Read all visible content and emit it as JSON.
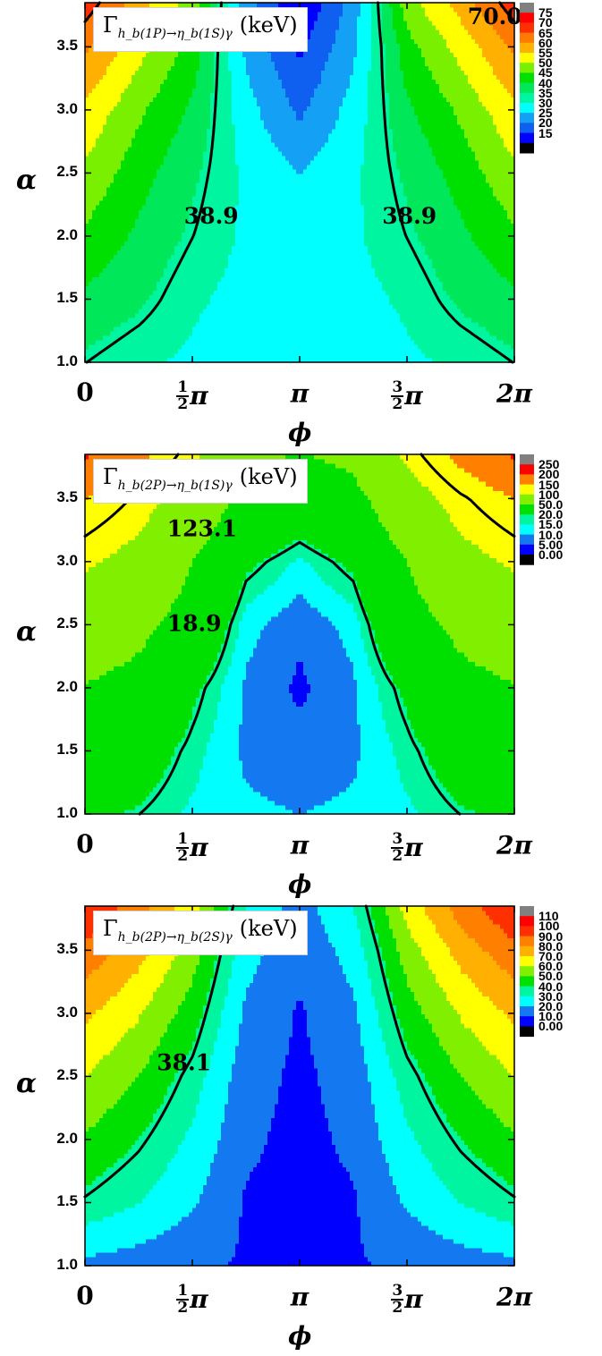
{
  "chart_data": [
    {
      "type": "heatmap",
      "title_symbol": "Γ",
      "title_subscript": "h_b(1P)→η_b(1S)γ",
      "title_unit": "(keV)",
      "xlabel": "ϕ",
      "ylabel": "α",
      "xticks": [
        {
          "value": 0,
          "num": "",
          "label": "0"
        },
        {
          "value": 1.5708,
          "num": "1",
          "label": "π"
        },
        {
          "value": 3.1416,
          "num": "",
          "label": "π"
        },
        {
          "value": 4.7124,
          "num": "3",
          "label": "π"
        },
        {
          "value": 6.2832,
          "num": "",
          "label": "2π"
        }
      ],
      "frac_den": "2",
      "yticks": [
        "1.0",
        "1.5",
        "2.0",
        "2.5",
        "3.0",
        "3.5"
      ],
      "xlim": [
        0,
        6.2832
      ],
      "ylim": [
        1.0,
        3.85
      ],
      "levels": [
        15,
        20,
        25,
        30,
        35,
        40,
        45,
        50,
        55,
        60,
        65,
        70,
        75
      ],
      "colorbar_labels": [
        "75",
        "70",
        "65",
        "60",
        "55",
        "50",
        "45",
        "40",
        "35",
        "30",
        "25",
        "20",
        "15"
      ],
      "colors": [
        "#000000",
        "#0000ff",
        "#0f5ff0",
        "#14a0f5",
        "#00ffff",
        "#00f5a0",
        "#00e85a",
        "#00e000",
        "#78f000",
        "#ffff00",
        "#ffb000",
        "#ff7a00",
        "#ff3000",
        "#ff0000",
        "#808080"
      ],
      "grid": {
        "x": [
          0,
          0.7854,
          1.5708,
          2.3562,
          3.1416,
          3.927,
          4.7124,
          5.4978,
          6.2832
        ],
        "y": [
          1.0,
          1.5,
          2.0,
          2.5,
          3.0,
          3.5,
          3.85
        ],
        "z": [
          [
            39,
            36,
            34,
            31,
            30,
            31,
            34,
            36,
            39
          ],
          [
            44,
            41,
            36,
            33,
            32,
            33,
            36,
            41,
            44
          ],
          [
            49,
            44,
            39,
            34,
            33,
            34,
            39,
            44,
            49
          ],
          [
            54,
            47,
            41,
            34,
            30,
            34,
            41,
            47,
            54
          ],
          [
            59,
            51,
            44,
            32,
            24,
            32,
            44,
            51,
            59
          ],
          [
            66,
            57,
            48,
            29,
            19,
            29,
            48,
            57,
            66
          ],
          [
            73,
            62,
            53,
            27,
            15,
            27,
            53,
            62,
            73
          ]
        ]
      },
      "contour_lines": [
        {
          "level": 38.9,
          "label": "38.9"
        },
        {
          "level": 70.0,
          "label": "70.0"
        }
      ],
      "contour_label_positions": [
        [
          1.45,
          2.1
        ],
        [
          4.35,
          2.1
        ],
        [
          5.6,
          3.68
        ]
      ]
    },
    {
      "type": "heatmap",
      "title_symbol": "Γ",
      "title_subscript": "h_b(2P)→η_b(1S)γ",
      "title_unit": "(keV)",
      "xlabel": "ϕ",
      "ylabel": "α",
      "xticks": [
        {
          "value": 0,
          "num": "",
          "label": "0"
        },
        {
          "value": 1.5708,
          "num": "1",
          "label": "π"
        },
        {
          "value": 3.1416,
          "num": "",
          "label": "π"
        },
        {
          "value": 4.7124,
          "num": "3",
          "label": "π"
        },
        {
          "value": 6.2832,
          "num": "",
          "label": "2π"
        }
      ],
      "frac_den": "2",
      "yticks": [
        "1.0",
        "1.5",
        "2.0",
        "2.5",
        "3.0",
        "3.5"
      ],
      "xlim": [
        0,
        6.2832
      ],
      "ylim": [
        1.0,
        3.85
      ],
      "levels": [
        0,
        5,
        10,
        15,
        20,
        50,
        100,
        150,
        200,
        250
      ],
      "colorbar_labels": [
        "250",
        "200",
        "150",
        "100",
        "50.0",
        "20.0",
        "15.0",
        "10.0",
        "5.00",
        "0.00"
      ],
      "colors": [
        "#000000",
        "#0000ff",
        "#1478f0",
        "#00ffff",
        "#00f5a0",
        "#00e000",
        "#80f000",
        "#ffff00",
        "#ff8000",
        "#ff0000",
        "#808080"
      ],
      "grid": {
        "x": [
          0,
          0.7854,
          1.5708,
          2.3562,
          3.1416,
          3.927,
          4.7124,
          5.4978,
          6.2832
        ],
        "y": [
          1.0,
          1.5,
          2.0,
          2.5,
          3.0,
          3.5,
          3.85
        ],
        "z": [
          [
            22,
            19,
            14,
            11,
            10,
            11,
            14,
            19,
            22
          ],
          [
            32,
            26,
            17,
            9,
            7,
            9,
            17,
            26,
            32
          ],
          [
            48,
            40,
            22,
            9,
            4,
            9,
            22,
            40,
            48
          ],
          [
            72,
            58,
            36,
            12,
            6,
            12,
            36,
            58,
            72
          ],
          [
            105,
            85,
            50,
            22,
            14,
            22,
            50,
            85,
            105
          ],
          [
            150,
            118,
            75,
            40,
            30,
            40,
            75,
            118,
            150
          ],
          [
            205,
            165,
            108,
            58,
            48,
            58,
            108,
            165,
            205
          ]
        ]
      },
      "contour_lines": [
        {
          "level": 18.9,
          "label": "18.9"
        },
        {
          "level": 123.1,
          "label": "123.1"
        }
      ],
      "contour_label_positions": [
        [
          1.2,
          2.45
        ],
        [
          1.2,
          3.2
        ]
      ]
    },
    {
      "type": "heatmap",
      "title_symbol": "Γ",
      "title_subscript": "h_b(2P)→η_b(2S)γ",
      "title_unit": "(keV)",
      "xlabel": "ϕ",
      "ylabel": "α",
      "xticks": [
        {
          "value": 0,
          "num": "",
          "label": "0"
        },
        {
          "value": 1.5708,
          "num": "1",
          "label": "π"
        },
        {
          "value": 3.1416,
          "num": "",
          "label": "π"
        },
        {
          "value": 4.7124,
          "num": "3",
          "label": "π"
        },
        {
          "value": 6.2832,
          "num": "",
          "label": "2π"
        }
      ],
      "frac_den": "2",
      "yticks": [
        "1.0",
        "1.5",
        "2.0",
        "2.5",
        "3.0",
        "3.5"
      ],
      "xlim": [
        0,
        6.2832
      ],
      "ylim": [
        1.0,
        3.85
      ],
      "levels": [
        0,
        10,
        20,
        30,
        40,
        50,
        60,
        70,
        80,
        90,
        100,
        110
      ],
      "colorbar_labels": [
        "110",
        "100",
        "90.0",
        "80.0",
        "70.0",
        "60.0",
        "50.0",
        "40.0",
        "30.0",
        "20.0",
        "10.0",
        "0.00"
      ],
      "colors": [
        "#000000",
        "#0000ff",
        "#1478f0",
        "#00ffff",
        "#00f5a0",
        "#00e000",
        "#80f000",
        "#ffff00",
        "#ffb000",
        "#ff8000",
        "#ff3000",
        "#ff0000",
        "#808080"
      ],
      "grid": {
        "x": [
          0,
          0.7854,
          1.5708,
          2.3562,
          3.1416,
          3.927,
          4.7124,
          5.4978,
          6.2832
        ],
        "y": [
          1.0,
          1.5,
          2.0,
          2.5,
          3.0,
          3.5,
          3.85
        ],
        "z": [
          [
            17,
            15,
            12,
            9,
            8,
            9,
            12,
            15,
            17
          ],
          [
            37,
            30,
            21,
            9,
            6,
            9,
            21,
            30,
            37
          ],
          [
            49,
            40,
            28,
            12,
            7,
            12,
            28,
            40,
            49
          ],
          [
            60,
            50,
            35,
            14,
            8,
            14,
            35,
            50,
            60
          ],
          [
            72,
            61,
            45,
            18,
            9,
            18,
            45,
            61,
            72
          ],
          [
            87,
            74,
            55,
            24,
            12,
            24,
            55,
            74,
            87
          ],
          [
            100,
            85,
            64,
            30,
            16,
            30,
            64,
            85,
            100
          ]
        ]
      },
      "contour_lines": [
        {
          "level": 38.1,
          "label": "38.1"
        }
      ],
      "contour_label_positions": [
        [
          1.05,
          2.55
        ]
      ]
    }
  ]
}
